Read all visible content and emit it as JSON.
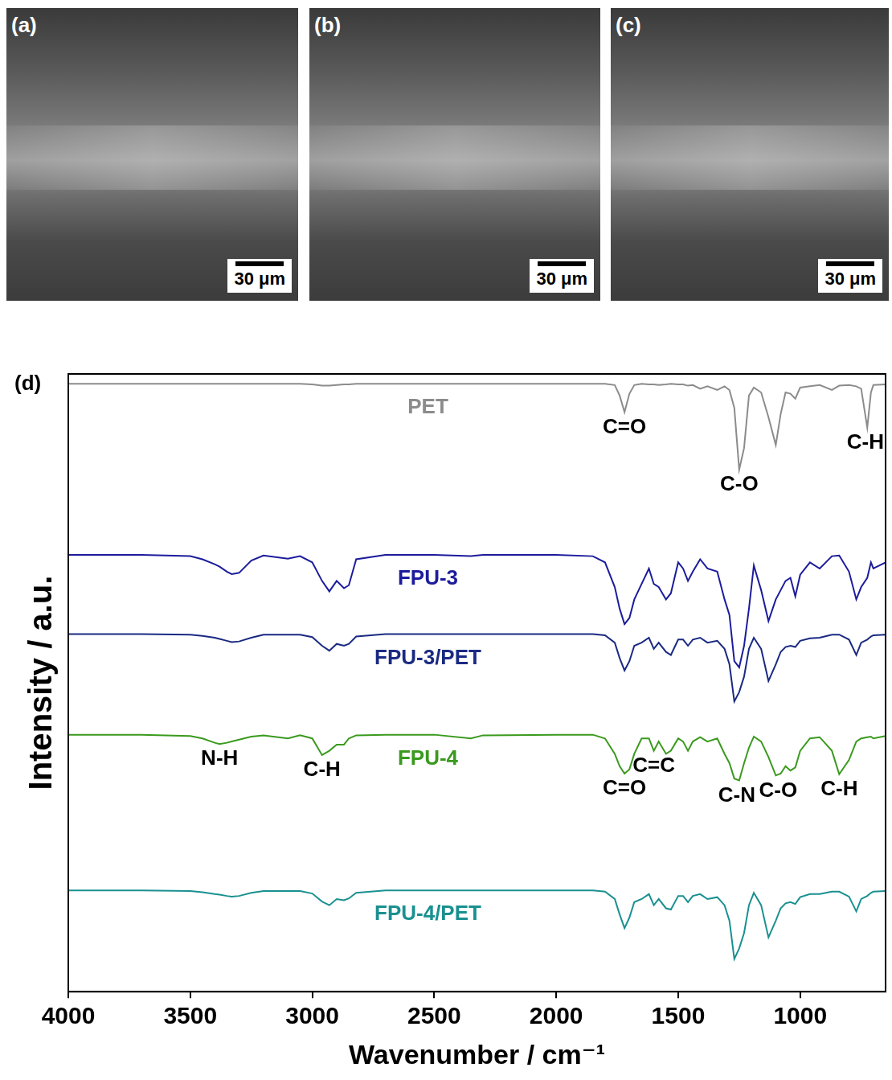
{
  "images": [
    {
      "label": "(a)",
      "scale_bar": "30 μm"
    },
    {
      "label": "(b)",
      "scale_bar": "30 μm"
    },
    {
      "label": "(c)",
      "scale_bar": "30 μm"
    }
  ],
  "chart_data": {
    "type": "line",
    "label": "(d)",
    "x_label": "Wavenumber / cm⁻¹",
    "y_label": "Intensity / a.u.",
    "xlim": [
      4000,
      650
    ],
    "xticks": [
      4000,
      3500,
      3000,
      2500,
      2000,
      1500,
      1000
    ],
    "ylim": [
      0,
      100
    ],
    "tick_labels": "x",
    "grid": false,
    "x": [
      4000,
      3700,
      3500,
      3450,
      3400,
      3380,
      3350,
      3330,
      3300,
      3250,
      3200,
      3100,
      3050,
      3000,
      2960,
      2930,
      2900,
      2870,
      2850,
      2820,
      2700,
      2500,
      2350,
      2300,
      2000,
      1850,
      1800,
      1760,
      1740,
      1720,
      1700,
      1680,
      1650,
      1620,
      1600,
      1580,
      1550,
      1530,
      1500,
      1480,
      1460,
      1440,
      1410,
      1380,
      1340,
      1310,
      1290,
      1270,
      1250,
      1230,
      1210,
      1190,
      1160,
      1130,
      1100,
      1080,
      1060,
      1040,
      1020,
      1000,
      960,
      920,
      870,
      840,
      800,
      770,
      750,
      725,
      710,
      700,
      650
    ],
    "series": [
      {
        "name": "PET",
        "color": "#8c8c8c",
        "values": [
          98.4,
          98.4,
          98.4,
          98.4,
          98.4,
          98.4,
          98.4,
          98.4,
          98.4,
          98.4,
          98.4,
          98.4,
          98.4,
          98.3,
          98.1,
          98.1,
          98.2,
          98.3,
          98.3,
          98.4,
          98.4,
          98.4,
          98.4,
          98.4,
          98.4,
          98.4,
          98.4,
          98.2,
          96.5,
          93.8,
          96.8,
          98.2,
          98.4,
          98.3,
          98.3,
          98.2,
          98.3,
          98.4,
          98.3,
          98.3,
          98.1,
          98.2,
          97.6,
          98.0,
          97.4,
          98.0,
          97.4,
          94.5,
          84.5,
          88.0,
          96.5,
          97.8,
          97.0,
          93.0,
          88.5,
          93.5,
          97.0,
          96.8,
          96.0,
          97.8,
          98.0,
          98.2,
          97.4,
          98.1,
          98.2,
          98.0,
          97.6,
          91.3,
          97.0,
          98.2,
          98.3
        ]
      },
      {
        "name": "FPU-3",
        "color": "#1c1c9c",
        "values": [
          70.7,
          70.7,
          70.5,
          70.0,
          69.2,
          68.8,
          68.0,
          67.6,
          67.8,
          69.8,
          70.6,
          70.1,
          70.5,
          69.5,
          66.5,
          64.8,
          66.5,
          65.3,
          65.8,
          70.0,
          70.7,
          70.7,
          70.5,
          70.7,
          70.7,
          70.5,
          69.5,
          65.5,
          62.0,
          59.5,
          60.5,
          63.5,
          66.0,
          68.5,
          66.0,
          65.5,
          63.5,
          64.5,
          69.5,
          68.5,
          66.5,
          68.0,
          70.0,
          68.5,
          68.0,
          63.5,
          61.0,
          53.5,
          52.5,
          56.0,
          62.0,
          69.0,
          65.0,
          60.0,
          63.5,
          65.0,
          66.5,
          67.0,
          64.0,
          67.5,
          69.5,
          68.5,
          70.5,
          70.6,
          68.0,
          63.5,
          65.5,
          67.0,
          69.5,
          68.5,
          69.5
        ]
      },
      {
        "name": "FPU-3/PET",
        "color": "#1a2a82",
        "values": [
          57.9,
          57.9,
          57.8,
          57.6,
          57.3,
          57.1,
          56.8,
          56.6,
          56.7,
          57.3,
          57.8,
          57.8,
          57.8,
          57.4,
          56.0,
          55.2,
          56.3,
          56.0,
          56.3,
          57.5,
          57.9,
          57.9,
          57.9,
          57.9,
          57.9,
          57.9,
          57.7,
          56.5,
          54.0,
          52.0,
          53.5,
          56.0,
          56.5,
          57.3,
          55.5,
          56.5,
          55.0,
          54.5,
          57.0,
          57.0,
          56.0,
          57.0,
          57.3,
          56.5,
          56.8,
          55.5,
          53.0,
          47.0,
          48.5,
          51.0,
          55.5,
          57.3,
          55.5,
          50.3,
          53.0,
          55.0,
          55.8,
          56.0,
          55.8,
          56.8,
          57.2,
          57.3,
          57.8,
          57.8,
          57.0,
          54.5,
          56.5,
          57.0,
          57.5,
          57.7,
          57.8
        ]
      },
      {
        "name": "FPU-4",
        "color": "#3a9a1e",
        "values": [
          41.6,
          41.6,
          41.4,
          41.0,
          40.3,
          40.1,
          40.3,
          40.5,
          40.8,
          41.3,
          41.5,
          41.0,
          41.5,
          41.0,
          38.3,
          39.0,
          40.0,
          40.0,
          41.0,
          41.5,
          41.6,
          41.6,
          41.0,
          41.5,
          41.6,
          41.6,
          41.0,
          38.5,
          36.5,
          35.3,
          36.0,
          38.5,
          41.0,
          41.0,
          39.0,
          40.5,
          38.5,
          39.0,
          41.0,
          40.5,
          39.0,
          40.5,
          41.2,
          40.5,
          41.0,
          38.5,
          37.0,
          34.5,
          34.2,
          37.0,
          39.5,
          41.3,
          40.5,
          38.0,
          35.0,
          35.3,
          36.5,
          35.8,
          36.3,
          39.0,
          41.0,
          41.2,
          39.0,
          35.2,
          37.5,
          40.5,
          41.0,
          41.2,
          41.3,
          41.0,
          41.4
        ]
      },
      {
        "name": "FPU-4/PET",
        "color": "#1a9090",
        "values": [
          16.4,
          16.4,
          16.3,
          16.1,
          15.8,
          15.7,
          15.5,
          15.4,
          15.5,
          16.0,
          16.3,
          16.3,
          16.3,
          15.9,
          14.6,
          14.0,
          15.0,
          14.8,
          15.1,
          16.0,
          16.4,
          16.4,
          16.4,
          16.4,
          16.4,
          16.4,
          16.2,
          15.0,
          12.5,
          10.3,
          12.0,
          14.5,
          15.0,
          15.8,
          14.0,
          15.0,
          13.5,
          13.3,
          15.5,
          15.5,
          14.5,
          15.5,
          15.8,
          15.0,
          15.3,
          14.0,
          11.5,
          5.3,
          7.0,
          9.5,
          14.0,
          16.0,
          14.0,
          8.8,
          11.5,
          13.5,
          14.3,
          14.5,
          14.2,
          15.3,
          15.8,
          15.8,
          16.2,
          16.2,
          15.4,
          13.0,
          15.0,
          15.5,
          16.0,
          16.2,
          16.3
        ]
      }
    ],
    "annotations": [
      {
        "text": "C=O",
        "x": 1720,
        "series": "PET"
      },
      {
        "text": "C-O",
        "x": 1250,
        "series": "PET"
      },
      {
        "text": "C-H",
        "x": 725,
        "series": "PET"
      },
      {
        "text": "N-H",
        "x": 3380,
        "series": "FPU-4"
      },
      {
        "text": "C-H",
        "x": 2960,
        "series": "FPU-4"
      },
      {
        "text": "C=O",
        "x": 1720,
        "series": "FPU-4"
      },
      {
        "text": "C=C",
        "x": 1600,
        "series": "FPU-4"
      },
      {
        "text": "C-N",
        "x": 1260,
        "series": "FPU-4"
      },
      {
        "text": "C-O",
        "x": 1090,
        "series": "FPU-4"
      },
      {
        "text": "C-H",
        "x": 840,
        "series": "FPU-4"
      }
    ]
  }
}
